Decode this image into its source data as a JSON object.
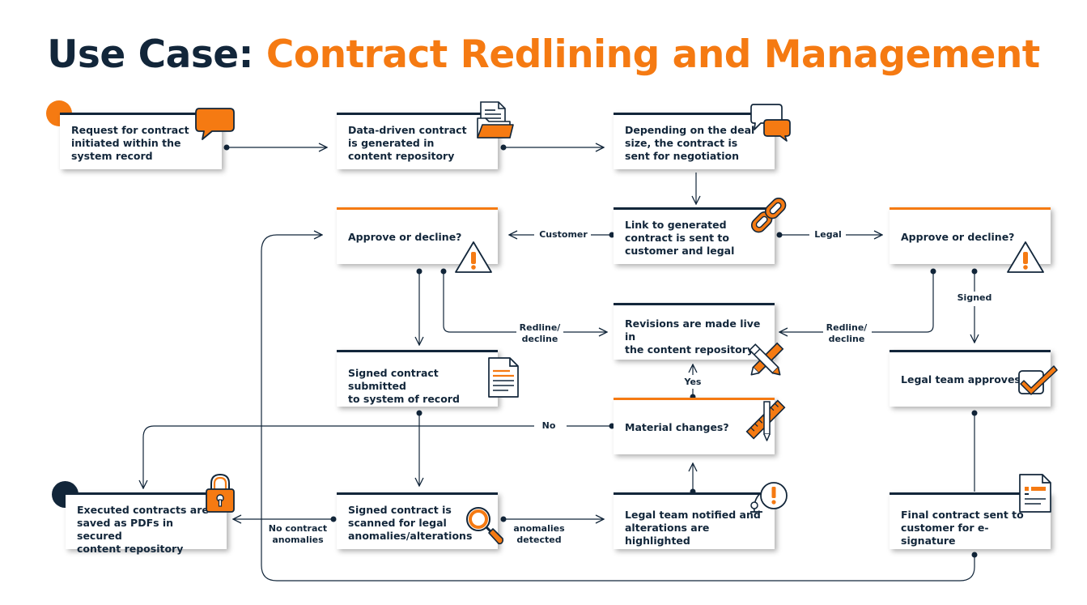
{
  "title": {
    "prefix": "Use Case:",
    "main": "Contract Redlining and Management"
  },
  "nodes": {
    "request": "Request for contract\ninitiated within the\nsystem record",
    "generated": "Data-driven contract\nis generated in\ncontent repository",
    "negotiation": "Depending on the deal\nsize, the contract is\nsent for negotiation",
    "link": "Link to generated\ncontract is sent to\ncustomer and legal",
    "approve_customer": "Approve or decline?",
    "approve_legal": "Approve or decline?",
    "revisions": "Revisions are made live in\nthe content repository",
    "signed_submitted": "Signed contract submitted\nto system of record",
    "legal_approves": "Legal team approves",
    "material": "Material changes?",
    "executed": "Executed contracts are\nsaved as PDFs in secured\ncontent repository",
    "scanned": "Signed contract is\nscanned for legal\nanomalies/alterations",
    "notified": "Legal team notified and\nalterations are highlighted",
    "final": "Final contract sent to\ncustomer for e-signature"
  },
  "labels": {
    "customer": "Customer",
    "legal": "Legal",
    "redline_left": "Redline/\ndecline",
    "redline_right": "Redline/\ndecline",
    "signed": "Signed",
    "yes": "Yes",
    "no": "No",
    "no_anomalies": "No contract\nanomalies",
    "anomalies": "anomalies\ndetected"
  },
  "colors": {
    "navy": "#12263a",
    "orange": "#f57a12",
    "text": "#12263a"
  },
  "icons": [
    "speech-bubble-icon",
    "document-folder-icon",
    "chat-bubbles-icon",
    "chain-link-icon",
    "warning-icon",
    "document-lines-icon",
    "pencil-cross-icon",
    "ruler-pencil-icon",
    "checkbox-icon",
    "padlock-icon",
    "magnifier-icon",
    "alarm-icon",
    "form-document-icon"
  ]
}
